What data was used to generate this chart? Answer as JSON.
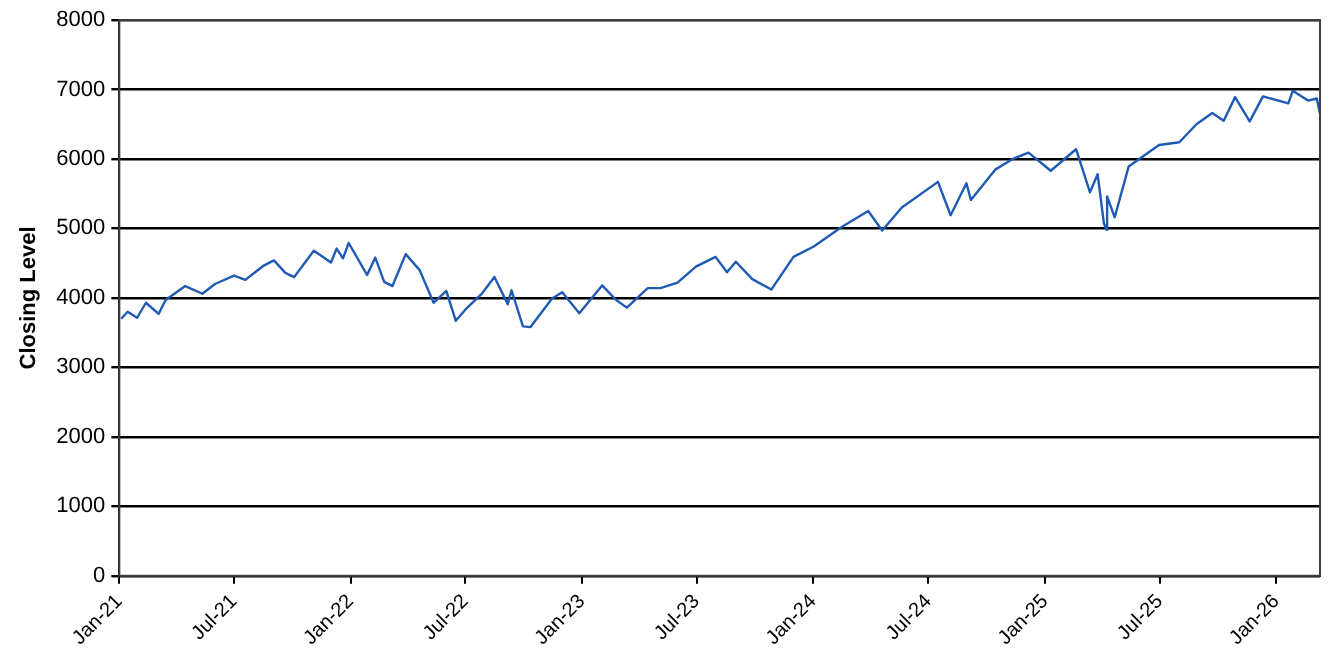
{
  "chart_data": {
    "type": "line",
    "ylabel": "Closing Level",
    "x": [
      "2021-01-04",
      "2021-01-14",
      "2021-01-29",
      "2021-02-12",
      "2021-03-04",
      "2021-03-15",
      "2021-04-15",
      "2021-05-12",
      "2021-06-01",
      "2021-07-01",
      "2021-07-19",
      "2021-08-16",
      "2021-09-02",
      "2021-09-20",
      "2021-10-04",
      "2021-11-04",
      "2021-12-01",
      "2021-12-10",
      "2021-12-20",
      "2021-12-29",
      "2022-01-27",
      "2022-02-09",
      "2022-02-23",
      "2022-03-08",
      "2022-03-29",
      "2022-04-20",
      "2022-05-12",
      "2022-06-01",
      "2022-06-16",
      "2022-07-01",
      "2022-07-28",
      "2022-08-16",
      "2022-09-06",
      "2022-09-12",
      "2022-09-30",
      "2022-10-12",
      "2022-11-15",
      "2022-12-01",
      "2022-12-28",
      "2023-02-02",
      "2023-02-24",
      "2023-03-13",
      "2023-04-15",
      "2023-05-05",
      "2023-06-01",
      "2023-06-30",
      "2023-07-31",
      "2023-08-18",
      "2023-09-01",
      "2023-09-27",
      "2023-10-27",
      "2023-12-01",
      "2024-01-02",
      "2024-02-15",
      "2024-03-28",
      "2024-04-19",
      "2024-05-20",
      "2024-07-16",
      "2024-08-05",
      "2024-08-30",
      "2024-09-06",
      "2024-10-15",
      "2024-11-11",
      "2024-12-06",
      "2025-01-10",
      "2025-02-19",
      "2025-03-13",
      "2025-03-25",
      "2025-04-04",
      "2025-04-08",
      "2025-04-09",
      "2025-04-21",
      "2025-05-13",
      "2025-06-30",
      "2025-08-01",
      "2025-08-28",
      "2025-09-22",
      "2025-10-10",
      "2025-10-28",
      "2025-11-20",
      "2025-12-11",
      "2026-01-20",
      "2026-01-27",
      "2026-02-20",
      "2026-03-06",
      "2026-03-11"
    ],
    "series": [
      {
        "color": "#1f5bb5",
        "values": [
          3700,
          3800,
          3714,
          3930,
          3770,
          3970,
          4170,
          4060,
          4200,
          4320,
          4260,
          4460,
          4540,
          4360,
          4300,
          4680,
          4510,
          4710,
          4570,
          4790,
          4330,
          4580,
          4230,
          4170,
          4630,
          4400,
          3930,
          4100,
          3670,
          3830,
          4070,
          4300,
          3910,
          4110,
          3590,
          3580,
          3990,
          4080,
          3780,
          4180,
          3970,
          3860,
          4140,
          4140,
          4220,
          4450,
          4590,
          4370,
          4520,
          4270,
          4120,
          4590,
          4740,
          5020,
          5250,
          4970,
          5300,
          5670,
          5190,
          5650,
          5410,
          5850,
          6000,
          6090,
          5830,
          6140,
          5520,
          5780,
          5070,
          4980,
          5460,
          5160,
          5890,
          6200,
          6240,
          6500,
          6660,
          6550,
          6890,
          6540,
          6900,
          6800,
          6980,
          6840,
          6870,
          6650
        ]
      }
    ],
    "xlim": [
      "2021-01-01",
      "2026-03-11"
    ],
    "xticks": [
      {
        "value": "2021-01",
        "label": "Jan-21"
      },
      {
        "value": "2021-07",
        "label": "Jul-21"
      },
      {
        "value": "2022-01",
        "label": "Jan-22"
      },
      {
        "value": "2022-07",
        "label": "Jul-22"
      },
      {
        "value": "2023-01",
        "label": "Jan-23"
      },
      {
        "value": "2023-07",
        "label": "Jul-23"
      },
      {
        "value": "2024-01",
        "label": "Jan-24"
      },
      {
        "value": "2024-07",
        "label": "Jul-24"
      },
      {
        "value": "2025-01",
        "label": "Jan-25"
      },
      {
        "value": "2025-07",
        "label": "Jul-25"
      },
      {
        "value": "2026-01",
        "label": "Jan-26"
      }
    ],
    "ylim": [
      0,
      8000
    ],
    "yticks": [
      0,
      1000,
      2000,
      3000,
      4000,
      5000,
      6000,
      7000,
      8000
    ],
    "grid": "y",
    "legend": false,
    "marker": "none",
    "line_style": "solid"
  }
}
